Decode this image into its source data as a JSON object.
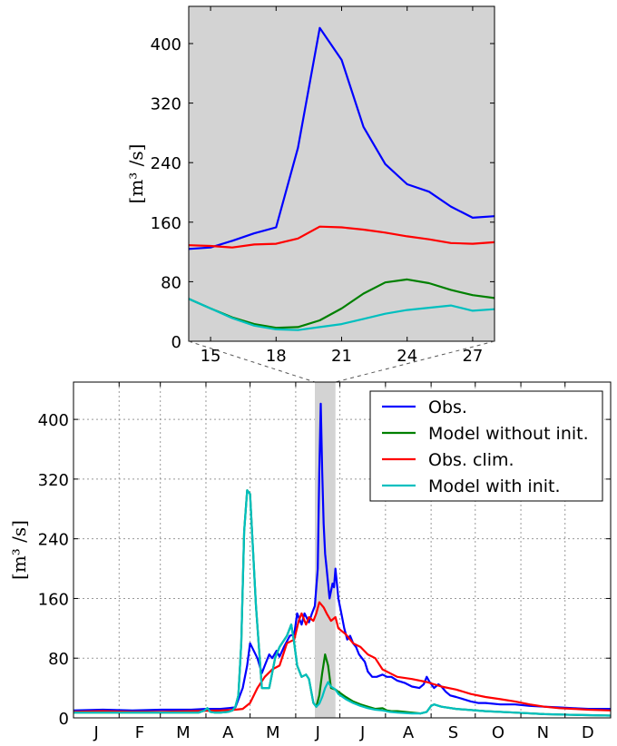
{
  "chart_data": [
    {
      "type": "line",
      "panel": "inset",
      "xlabel": "",
      "ylabel": "[m³ /s]",
      "xlim": [
        14,
        28
      ],
      "ylim": [
        0,
        450
      ],
      "xticks": [
        15,
        18,
        21,
        24,
        27
      ],
      "yticks": [
        0,
        80,
        160,
        240,
        320,
        400
      ],
      "grid": false,
      "background": "#d3d3d3",
      "series": [
        {
          "key": "obs",
          "x": [
            14,
            15,
            16,
            17,
            18,
            19,
            20,
            21,
            22,
            23,
            24,
            25,
            26,
            27,
            28
          ],
          "values": [
            124,
            126,
            135,
            145,
            153,
            260,
            421,
            378,
            288,
            238,
            211,
            201,
            181,
            166,
            168
          ]
        },
        {
          "key": "model_wo",
          "x": [
            14,
            15,
            16,
            17,
            18,
            19,
            20,
            21,
            22,
            23,
            24,
            25,
            26,
            27,
            28
          ],
          "values": [
            57,
            44,
            32,
            23,
            18,
            19,
            28,
            44,
            64,
            79,
            83,
            78,
            69,
            62,
            58
          ]
        },
        {
          "key": "clim",
          "x": [
            14,
            15,
            16,
            17,
            18,
            19,
            20,
            21,
            22,
            23,
            24,
            25,
            26,
            27,
            28
          ],
          "values": [
            129,
            128,
            126,
            130,
            131,
            138,
            154,
            153,
            150,
            146,
            141,
            137,
            132,
            131,
            133
          ]
        },
        {
          "key": "model_w",
          "x": [
            14,
            15,
            16,
            17,
            18,
            19,
            20,
            21,
            22,
            23,
            24,
            25,
            26,
            27,
            28
          ],
          "values": [
            57,
            44,
            31,
            21,
            16,
            15,
            19,
            23,
            30,
            37,
            42,
            45,
            48,
            41,
            43
          ]
        }
      ]
    },
    {
      "type": "line",
      "panel": "main",
      "xlabel": "",
      "ylabel": "[m³ /s]",
      "xlim": [
        0,
        365
      ],
      "ylim": [
        0,
        450
      ],
      "month_labels": [
        "J",
        "F",
        "M",
        "A",
        "M",
        "J",
        "J",
        "A",
        "S",
        "O",
        "N",
        "D"
      ],
      "month_starts": [
        0,
        31,
        59,
        90,
        120,
        151,
        181,
        212,
        243,
        273,
        304,
        334
      ],
      "yticks": [
        0,
        80,
        160,
        240,
        320,
        400
      ],
      "grid": true,
      "legend_position": "top-right",
      "highlight_span_days": [
        164,
        178
      ],
      "series": [
        {
          "key": "obs",
          "name": "Obs.",
          "color": "#0000ff",
          "x": [
            0,
            20,
            40,
            60,
            80,
            90,
            100,
            110,
            115,
            118,
            120,
            125,
            128,
            130,
            133,
            135,
            138,
            140,
            143,
            147,
            150,
            152,
            155,
            157,
            160,
            162,
            164,
            166,
            167,
            168,
            169,
            170,
            171,
            172,
            174,
            176,
            177,
            178,
            180,
            182,
            184,
            186,
            188,
            190,
            192,
            194,
            196,
            198,
            200,
            203,
            206,
            210,
            213,
            216,
            220,
            225,
            230,
            235,
            238,
            240,
            242,
            245,
            248,
            250,
            253,
            256,
            260,
            265,
            270,
            275,
            280,
            290,
            300,
            310,
            320,
            330,
            340,
            350,
            360,
            365
          ],
          "values": [
            10,
            11,
            10,
            11,
            11,
            12,
            12,
            14,
            40,
            70,
            100,
            80,
            60,
            70,
            85,
            80,
            90,
            82,
            95,
            110,
            112,
            140,
            125,
            140,
            128,
            140,
            150,
            200,
            330,
            421,
            330,
            260,
            220,
            200,
            160,
            180,
            175,
            200,
            160,
            140,
            120,
            105,
            110,
            100,
            95,
            85,
            80,
            75,
            62,
            55,
            55,
            58,
            55,
            55,
            50,
            47,
            42,
            40,
            45,
            55,
            48,
            40,
            45,
            42,
            35,
            30,
            28,
            25,
            22,
            20,
            20,
            18,
            18,
            16,
            15,
            14,
            13,
            12,
            12,
            12
          ]
        },
        {
          "key": "model_wo",
          "name": "Model without init.",
          "color": "#008000",
          "x": [
            0,
            60,
            85,
            89,
            91,
            93,
            96,
            100,
            105,
            108,
            110,
            112,
            114,
            116,
            118,
            120,
            124,
            128,
            133,
            137,
            140,
            145,
            148,
            150,
            152,
            155,
            158,
            160,
            163,
            165,
            167,
            169,
            171,
            173,
            175,
            178,
            180,
            185,
            190,
            195,
            200,
            205,
            210,
            213,
            216,
            220,
            225,
            230,
            236,
            240,
            243,
            245,
            250,
            260,
            280,
            300,
            320,
            340,
            365
          ],
          "values": [
            7,
            7,
            7,
            10,
            13,
            8,
            7,
            7,
            8,
            10,
            15,
            30,
            100,
            250,
            305,
            300,
            150,
            40,
            40,
            80,
            95,
            110,
            125,
            100,
            70,
            55,
            58,
            52,
            20,
            15,
            30,
            60,
            85,
            70,
            40,
            38,
            35,
            28,
            22,
            18,
            15,
            12,
            13,
            10,
            9,
            9,
            8,
            7,
            6,
            8,
            16,
            18,
            15,
            12,
            9,
            7,
            5,
            4,
            3
          ]
        },
        {
          "key": "clim",
          "name": "Obs. clim.",
          "color": "#ff0000",
          "x": [
            0,
            20,
            40,
            60,
            80,
            100,
            110,
            115,
            120,
            125,
            130,
            135,
            140,
            145,
            150,
            153,
            155,
            158,
            160,
            163,
            165,
            167,
            170,
            172,
            175,
            178,
            180,
            185,
            190,
            195,
            200,
            205,
            210,
            215,
            220,
            230,
            240,
            250,
            260,
            270,
            280,
            290,
            300,
            310,
            320,
            330,
            340,
            350,
            365
          ],
          "values": [
            8,
            9,
            8,
            8,
            9,
            10,
            11,
            12,
            20,
            40,
            55,
            65,
            70,
            100,
            105,
            130,
            140,
            125,
            135,
            130,
            140,
            155,
            148,
            140,
            130,
            135,
            120,
            112,
            100,
            95,
            85,
            80,
            65,
            60,
            55,
            52,
            48,
            42,
            38,
            32,
            28,
            25,
            22,
            18,
            15,
            13,
            12,
            11,
            10
          ]
        },
        {
          "key": "model_w",
          "name": "Model with init.",
          "color": "#00bfbf",
          "x": [
            0,
            60,
            85,
            89,
            91,
            93,
            96,
            100,
            105,
            108,
            110,
            112,
            114,
            116,
            118,
            120,
            124,
            128,
            133,
            137,
            140,
            145,
            148,
            150,
            152,
            155,
            158,
            160,
            163,
            165,
            167,
            169,
            171,
            173,
            175,
            178,
            180,
            185,
            190,
            195,
            200,
            205,
            210,
            215,
            220,
            230,
            236,
            240,
            243,
            245,
            250,
            260,
            280,
            300,
            320,
            340,
            365
          ],
          "values": [
            7,
            7,
            7,
            10,
            13,
            8,
            7,
            7,
            8,
            10,
            15,
            30,
            100,
            250,
            305,
            300,
            150,
            40,
            40,
            80,
            95,
            110,
            125,
            100,
            70,
            55,
            58,
            52,
            20,
            15,
            19,
            28,
            40,
            48,
            42,
            38,
            32,
            25,
            20,
            16,
            13,
            11,
            10,
            8,
            7,
            6,
            6,
            8,
            16,
            18,
            15,
            12,
            9,
            7,
            5,
            4,
            3
          ]
        }
      ]
    }
  ]
}
